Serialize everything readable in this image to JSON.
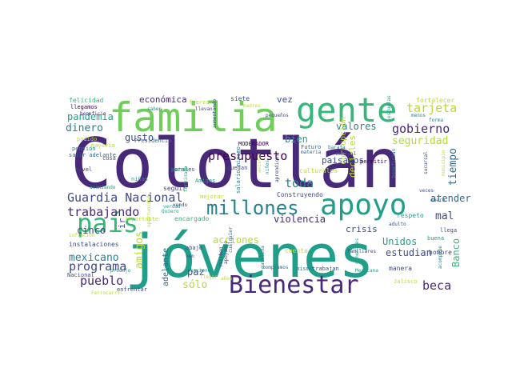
{
  "palette": {
    "deep_purple": "#482878",
    "indigo": "#3e4a89",
    "blue": "#31688e",
    "teal": "#26828e",
    "green_teal": "#1f9e89",
    "green": "#35b779",
    "light_green": "#6ece58",
    "lime": "#b5de2b",
    "yellow": "#fde725",
    "dark": "#440154"
  },
  "words": [
    {
      "text": "Colotlán",
      "color": "deep_purple"
    },
    {
      "text": "jóvenes",
      "color": "green_teal"
    },
    {
      "text": "familia",
      "color": "light_green"
    },
    {
      "text": "gente",
      "color": "green"
    },
    {
      "text": "Bienestar",
      "color": "deep_purple"
    },
    {
      "text": "apoyo",
      "color": "green_teal"
    },
    {
      "text": "país",
      "color": "green"
    },
    {
      "text": "millones",
      "color": "teal"
    },
    {
      "text": "Guardia Nacional",
      "color": "indigo"
    },
    {
      "text": "presupuesto",
      "color": "dark"
    },
    {
      "text": "trabajando",
      "color": "deep_purple"
    },
    {
      "text": "gobierno",
      "color": "deep_purple"
    },
    {
      "text": "tarjeta",
      "color": "lime"
    },
    {
      "text": "programa",
      "color": "indigo"
    },
    {
      "text": "pueblo",
      "color": "deep_purple"
    },
    {
      "text": "beca",
      "color": "deep_purple"
    },
    {
      "text": "mexicano",
      "color": "teal"
    },
    {
      "text": "toda",
      "color": "teal"
    },
    {
      "text": "dinero",
      "color": "teal"
    },
    {
      "text": "pandemia",
      "color": "green_teal"
    },
    {
      "text": "valores",
      "color": "teal"
    },
    {
      "text": "seguridad",
      "color": "lime"
    },
    {
      "text": "bien",
      "color": "green_teal"
    },
    {
      "text": "gusto",
      "color": "indigo"
    },
    {
      "text": "sólo",
      "color": "lime"
    },
    {
      "text": "económica",
      "color": "deep_purple"
    },
    {
      "text": "amigos",
      "color": "lime"
    },
    {
      "text": "acciones",
      "color": "lime"
    },
    {
      "text": "violencia",
      "color": "deep_purple"
    },
    {
      "text": "crisis",
      "color": "indigo"
    },
    {
      "text": "paisanos",
      "color": "indigo"
    },
    {
      "text": "estudian",
      "color": "indigo"
    },
    {
      "text": "tiempo",
      "color": "blue"
    },
    {
      "text": "atender",
      "color": "blue"
    },
    {
      "text": "mal",
      "color": "indigo"
    },
    {
      "text": "Banco",
      "color": "green"
    },
    {
      "text": "Unidos",
      "color": "green_teal"
    },
    {
      "text": "cinco",
      "color": "indigo"
    },
    {
      "text": "paz",
      "color": "indigo"
    },
    {
      "text": "corrupción",
      "color": "lime"
    },
    {
      "text": "decirles",
      "color": "lime"
    },
    {
      "text": "vez",
      "color": "indigo"
    },
    {
      "text": "ir",
      "color": "indigo"
    },
    {
      "text": "adelante",
      "color": "blue"
    },
    {
      "text": "felicidad",
      "color": "green"
    },
    {
      "text": "llegamos",
      "color": "dark"
    },
    {
      "text": "beneficio",
      "color": "deep_purple"
    },
    {
      "text": "Presidencia",
      "color": "blue"
    },
    {
      "text": "fuerza",
      "color": "lime"
    },
    {
      "text": "siete",
      "color": "indigo"
    },
    {
      "text": "fortalecer",
      "color": "lime"
    },
    {
      "text": "Futuro",
      "color": "blue"
    },
    {
      "text": "materia",
      "color": "blue"
    },
    {
      "text": "permitir",
      "color": "dark"
    },
    {
      "text": "MODERADOR",
      "color": "dark"
    },
    {
      "text": "Construyendo",
      "color": "indigo"
    },
    {
      "text": "salario mínimo",
      "color": "teal"
    },
    {
      "text": "morales",
      "color": "indigo"
    },
    {
      "text": "padres",
      "color": "green_teal"
    },
    {
      "text": "Amigas",
      "color": "green_teal"
    },
    {
      "text": "quedan",
      "color": "indigo"
    },
    {
      "text": "encargado",
      "color": "green"
    },
    {
      "text": "seguir",
      "color": "indigo"
    },
    {
      "text": "mejorar",
      "color": "lime"
    },
    {
      "text": "culturales",
      "color": "lime"
    },
    {
      "text": "respeto",
      "color": "green_teal"
    },
    {
      "text": "hombre",
      "color": "indigo"
    },
    {
      "text": "buena",
      "color": "green_teal"
    },
    {
      "text": "cuenta",
      "color": "lime"
    },
    {
      "text": "manera",
      "color": "indigo"
    },
    {
      "text": "Mexicana",
      "color": "green_teal"
    },
    {
      "text": "mismo",
      "color": "teal"
    },
    {
      "text": "trabajan",
      "color": "indigo"
    },
    {
      "text": "compramos",
      "color": "blue"
    },
    {
      "text": "Jalisco",
      "color": "lime"
    },
    {
      "text": "Nacional",
      "color": "indigo"
    },
    {
      "text": "enfrentar",
      "color": "indigo"
    },
    {
      "text": "instalaciones",
      "color": "indigo"
    },
    {
      "text": "importante",
      "color": "lime"
    },
    {
      "text": "inflación",
      "color": "lime"
    },
    {
      "text": "cosa",
      "color": "indigo"
    },
    {
      "text": "nivel",
      "color": "indigo"
    },
    {
      "text": "niñas",
      "color": "green_teal"
    },
    {
      "text": "salir adelante",
      "color": "blue"
    },
    {
      "text": "pensión",
      "color": "teal"
    },
    {
      "text": "podido",
      "color": "lime"
    },
    {
      "text": "mayoría",
      "color": "lime"
    },
    {
      "text": "avanzando",
      "color": "green_teal"
    },
    {
      "text": "abajo",
      "color": "indigo"
    },
    {
      "text": "vendo",
      "color": "indigo"
    },
    {
      "text": "verdad",
      "color": "green_teal"
    },
    {
      "text": "Quiero",
      "color": "green_teal"
    },
    {
      "text": "haciendo",
      "color": "green_teal"
    },
    {
      "text": "produjo",
      "color": "green_teal"
    },
    {
      "text": "llega",
      "color": "indigo"
    },
    {
      "text": "adulto",
      "color": "indigo"
    },
    {
      "text": "veces",
      "color": "indigo"
    },
    {
      "text": "sucursal",
      "color": "indigo"
    },
    {
      "text": "benefician",
      "color": "teal"
    },
    {
      "text": "enero",
      "color": "blue"
    },
    {
      "text": "forma",
      "color": "teal"
    },
    {
      "text": "menos",
      "color": "teal"
    },
    {
      "text": "escuelas",
      "color": "green_teal"
    },
    {
      "text": "aumentando",
      "color": "indigo"
    },
    {
      "text": "madres",
      "color": "lime"
    },
    {
      "text": "pequeños",
      "color": "indigo"
    },
    {
      "text": "llevan",
      "color": "indigo"
    },
    {
      "text": "saben",
      "color": "teal"
    },
    {
      "text": "mundial",
      "color": "indigo"
    },
    {
      "text": "barata",
      "color": "teal"
    },
    {
      "text": "gasolina",
      "color": "teal"
    },
    {
      "text": "reciben",
      "color": "indigo"
    },
    {
      "text": "cualquier",
      "color": "blue"
    },
    {
      "text": "aprendices",
      "color": "indigo"
    },
    {
      "text": "generales",
      "color": "green_teal"
    },
    {
      "text": "familiares",
      "color": "indigo"
    },
    {
      "text": "acompañe",
      "color": "teal"
    },
    {
      "text": "municipio",
      "color": "lime"
    },
    {
      "text": "oportunidad",
      "color": "lime"
    },
    {
      "text": "terminado",
      "color": "green"
    },
    {
      "text": "apoyando",
      "color": "indigo"
    },
    {
      "text": "ven",
      "color": "indigo"
    },
    {
      "text": "niños",
      "color": "green_teal"
    },
    {
      "text": "asistir",
      "color": "lime"
    },
    {
      "text": "llegar",
      "color": "lime"
    },
    {
      "text": "años",
      "color": "lime"
    },
    {
      "text": "Ferrocarril",
      "color": "lime"
    }
  ]
}
